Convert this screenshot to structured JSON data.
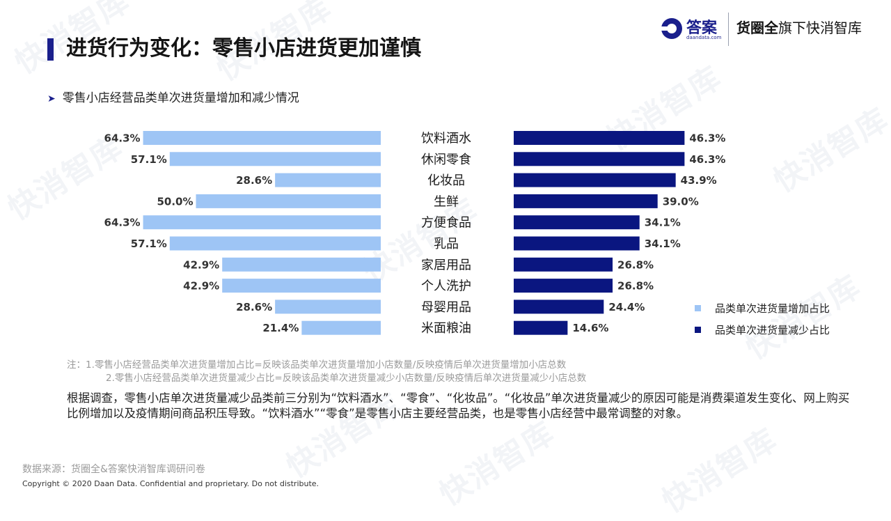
{
  "header": {
    "title": "进货行为变化：零售小店进货更加谨慎",
    "logo_text": "答案",
    "logo_url": "daandata.com",
    "brand_bold": "货圈全",
    "brand_rest": "旗下快消智库"
  },
  "watermark_text": "快消智库",
  "subtitle": "零售小店经营品类单次进货量增加和减少情况",
  "colors": {
    "increase": "#9ec5f5",
    "decrease": "#0a1680",
    "accent": "#1a1f8c"
  },
  "chart_data": {
    "type": "bar",
    "orientation": "horizontal-butterfly",
    "categories": [
      "饮料酒水",
      "休闲零食",
      "化妆品",
      "生鲜",
      "方便食品",
      "乳品",
      "家居用品",
      "个人洗护",
      "母婴用品",
      "米面粮油"
    ],
    "series": [
      {
        "name": "品类单次进货量增加占比",
        "values": [
          64.3,
          57.1,
          28.6,
          50.0,
          64.3,
          57.1,
          42.9,
          42.9,
          28.6,
          21.4
        ],
        "labels": [
          "64.3%",
          "57.1%",
          "28.6%",
          "50.0%",
          "64.3%",
          "57.1%",
          "42.9%",
          "42.9%",
          "28.6%",
          "21.4%"
        ]
      },
      {
        "name": "品类单次进货量减少占比",
        "values": [
          46.3,
          46.3,
          43.9,
          39.0,
          34.1,
          34.1,
          26.8,
          26.8,
          24.4,
          14.6
        ],
        "labels": [
          "46.3%",
          "46.3%",
          "43.9%",
          "39.0%",
          "34.1%",
          "34.1%",
          "26.8%",
          "26.8%",
          "24.4%",
          "14.6%"
        ]
      }
    ],
    "legend_position": "right",
    "grid": false
  },
  "notes": [
    "注：1.零售小店经营品类单次进货量增加占比=反映该品类单次进货量增加小店数量/反映疫情后单次进货量增加小店总数",
    "2.零售小店经营品类单次进货量减少占比=反映该品类单次进货量减少小店数量/反映疫情后单次进货量减少小店总数"
  ],
  "paragraph": "根据调查，零售小店单次进货量减少品类前三分别为“饮料酒水”、“零食”、“化妆品”。“化妆品”单次进货量减少的原因可能是消费渠道发生变化、网上购买比例增加以及疫情期间商品积压导致。“饮料酒水”“零食”是零售小店主要经营品类，也是零售小店经营中最常调整的对象。",
  "source": "数据来源：货圈全&答案快消智库调研问卷",
  "copyright": "Copyright © 2020 Daan Data. Confidential and proprietary. Do not distribute."
}
